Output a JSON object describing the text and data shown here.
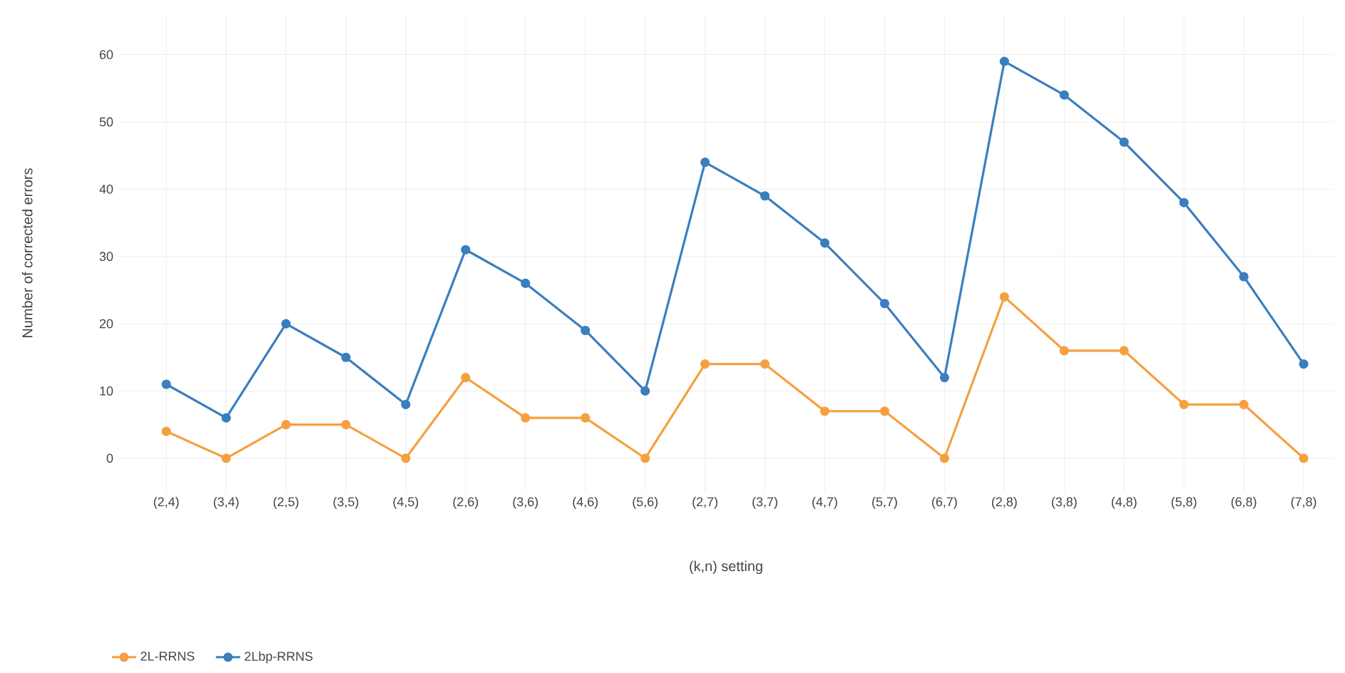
{
  "chart_data": {
    "type": "line",
    "xlabel": "(k,n) setting",
    "ylabel": "Number of corrected errors",
    "categories": [
      "(2,4)",
      "(3,4)",
      "(2,5)",
      "(3,5)",
      "(4,5)",
      "(2,6)",
      "(3,6)",
      "(4,6)",
      "(5,6)",
      "(2,7)",
      "(3,7)",
      "(4,7)",
      "(5,7)",
      "(6,7)",
      "(2,8)",
      "(3,8)",
      "(4,8)",
      "(5,8)",
      "(6,8)",
      "(7,8)"
    ],
    "series": [
      {
        "name": "2L-RRNS",
        "color": "#f5a040",
        "values": [
          4,
          0,
          5,
          5,
          0,
          12,
          6,
          6,
          0,
          14,
          14,
          7,
          7,
          0,
          24,
          16,
          16,
          8,
          8,
          0
        ]
      },
      {
        "name": "2Lbp-RRNS",
        "color": "#3a7ebf",
        "values": [
          11,
          6,
          20,
          15,
          8,
          31,
          26,
          19,
          10,
          44,
          39,
          32,
          23,
          12,
          59,
          54,
          47,
          38,
          27,
          14
        ]
      }
    ],
    "ylim": [
      -5,
      66
    ],
    "yticks": [
      0,
      10,
      20,
      30,
      40,
      50,
      60
    ],
    "grid": true,
    "legend": "bottom left",
    "marker": "circle",
    "line_style": "solid"
  }
}
